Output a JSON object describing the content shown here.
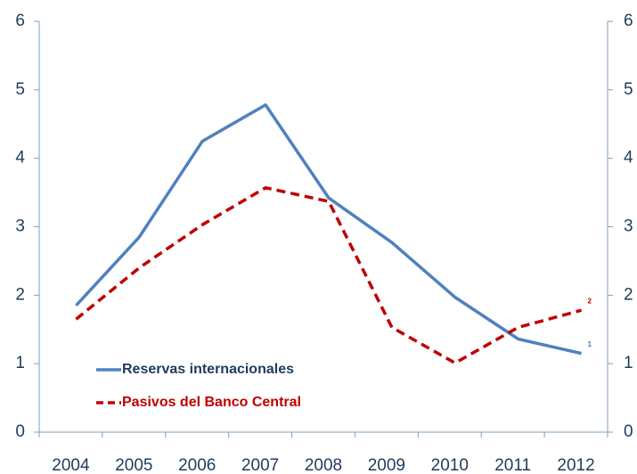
{
  "chart_data": {
    "type": "line",
    "categories": [
      "2004",
      "2005",
      "2006",
      "2007",
      "2008",
      "2009",
      "2010",
      "2011",
      "2012"
    ],
    "series": [
      {
        "name": "Reservas internacionales",
        "color": "#4f81bd",
        "dash": false,
        "values": [
          1.85,
          2.85,
          4.25,
          4.78,
          3.42,
          2.77,
          1.97,
          1.36,
          1.15
        ]
      },
      {
        "name": "Pasivos del Banco Central",
        "color": "#c00000",
        "dash": true,
        "values": [
          1.65,
          2.4,
          3.03,
          3.57,
          3.37,
          1.53,
          1.01,
          1.53,
          1.78
        ]
      }
    ],
    "annotations": [
      "1",
      "2"
    ],
    "ylim": [
      0,
      6
    ],
    "yticks": [
      0,
      1,
      2,
      3,
      4,
      5,
      6
    ],
    "y2lim": [
      0,
      6
    ],
    "y2ticks": [
      0,
      1,
      2,
      3,
      4,
      5,
      6
    ],
    "legend": "lower left"
  }
}
